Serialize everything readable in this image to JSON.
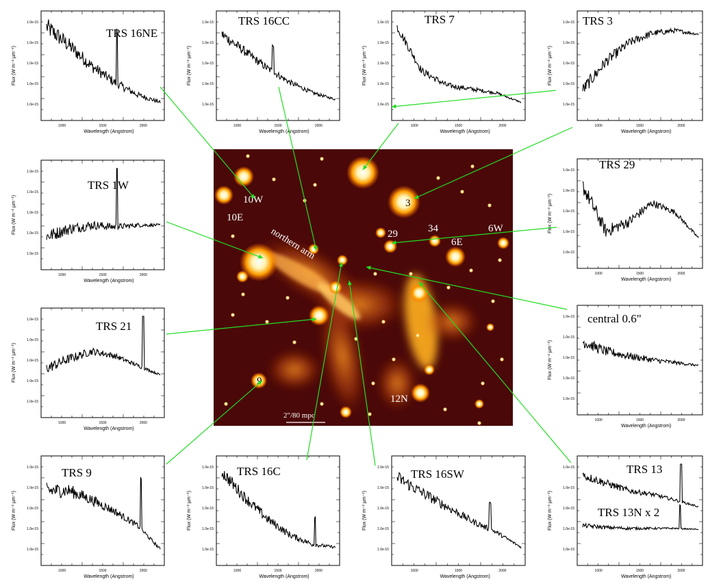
{
  "figure": {
    "image": {
      "sources": [
        "10W",
        "10E",
        "3",
        "29",
        "34",
        "6E",
        "6W",
        "9",
        "12N"
      ],
      "northern_arm_label": "northern arm",
      "scale_bar_label": "2\"/80 mpc"
    },
    "axis_text": {
      "xlabel": "Wavelength (Angstrom)",
      "ylabel": "Flux (W m⁻² µm⁻¹)",
      "xticks": [
        "1000",
        "1500",
        "2000"
      ]
    },
    "line_color": "#22dd22",
    "image_palette": [
      "#3c0505",
      "#8a1a00",
      "#d85a00",
      "#ffb000",
      "#fff6d0"
    ]
  },
  "chart_data": [
    {
      "type": "line",
      "title": "TRS 16NE",
      "trend": "decline",
      "noise": 0.16,
      "line": [
        0.62,
        0.55
      ],
      "y": [
        0.92,
        0.72,
        0.5,
        0.33,
        0.2,
        0.12
      ]
    },
    {
      "type": "line",
      "title": "TRS 16CC",
      "trend": "decline",
      "noise": 0.1,
      "line": [
        0.45,
        0.3
      ],
      "y": [
        0.84,
        0.66,
        0.48,
        0.33,
        0.22,
        0.15
      ]
    },
    {
      "type": "line",
      "title": "TRS 7",
      "trend": "steep-then-flat",
      "noise": 0.08,
      "line": [],
      "y": [
        0.92,
        0.45,
        0.3,
        0.26,
        0.22,
        0.12
      ]
    },
    {
      "type": "line",
      "title": "TRS 3",
      "trend": "rising",
      "noise": 0.12,
      "line": [],
      "y": [
        0.25,
        0.55,
        0.75,
        0.85,
        0.88,
        0.84
      ]
    },
    {
      "type": "line",
      "title": "TRS 1W",
      "trend": "flat",
      "noise": 0.12,
      "line": [
        0.62,
        0.75
      ],
      "y": [
        0.28,
        0.36,
        0.4,
        0.38,
        0.4,
        0.4
      ]
    },
    {
      "type": "line",
      "title": "TRS 29",
      "trend": "hump",
      "noise": 0.14,
      "line": [],
      "y": [
        0.8,
        0.32,
        0.42,
        0.62,
        0.52,
        0.25
      ]
    },
    {
      "type": "line",
      "title": "TRS 21",
      "trend": "hump",
      "noise": 0.1,
      "line": [
        0.85,
        0.68
      ],
      "y": [
        0.45,
        0.55,
        0.63,
        0.58,
        0.48,
        0.38
      ]
    },
    {
      "type": "line",
      "title": "central 0.6\"",
      "trend": "gentle-decline",
      "noise": 0.1,
      "line": [],
      "y": [
        0.7,
        0.6,
        0.55,
        0.51,
        0.48,
        0.45
      ]
    },
    {
      "type": "line",
      "title": "TRS 9",
      "trend": "decline",
      "noise": 0.14,
      "line": [
        0.83,
        0.55
      ],
      "y": [
        0.72,
        0.72,
        0.62,
        0.5,
        0.35,
        0.1
      ]
    },
    {
      "type": "line",
      "title": "TRS 16C",
      "trend": "decline",
      "noise": 0.12,
      "line": [
        0.82,
        0.3
      ],
      "y": [
        0.92,
        0.65,
        0.42,
        0.25,
        0.15,
        0.12
      ]
    },
    {
      "type": "line",
      "title": "TRS 16SW",
      "trend": "decline",
      "noise": 0.12,
      "line": [
        0.75,
        0.3
      ],
      "y": [
        0.86,
        0.7,
        0.55,
        0.4,
        0.28,
        0.12
      ]
    },
    {
      "type": "line",
      "title": "TRS 13",
      "second_title": "TRS 13N x 2",
      "trend": "two-series",
      "noise": 0.08,
      "line": [
        0.85,
        0.5
      ],
      "y": [
        0.88,
        0.8,
        0.72,
        0.68,
        0.62,
        0.55
      ],
      "y2": [
        0.35,
        0.33,
        0.32,
        0.32,
        0.32,
        0.31
      ]
    }
  ]
}
